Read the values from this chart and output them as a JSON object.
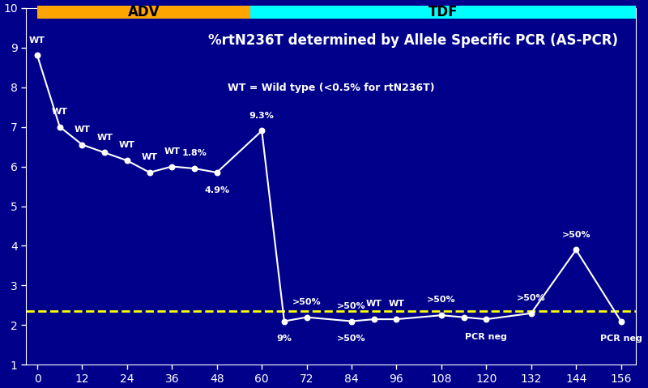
{
  "background_color": "#00008B",
  "plot_bg_color": "#00008B",
  "title": "%rtN236T determined by Allele Specific PCR (AS-PCR)",
  "subtitle": "WT = Wild type (<0.5% for rtN236T)",
  "title_color": "white",
  "subtitle_color": "white",
  "xlim": [
    -3,
    160
  ],
  "ylim": [
    1,
    10
  ],
  "xticks": [
    0,
    12,
    24,
    36,
    48,
    60,
    72,
    84,
    96,
    108,
    120,
    132,
    144,
    156
  ],
  "yticks": [
    1,
    2,
    3,
    4,
    5,
    6,
    7,
    8,
    9,
    10
  ],
  "tick_color": "white",
  "adv_color": "#FFA500",
  "tdf_color": "#00FFFF",
  "adv_label": "ADV",
  "tdf_label": "TDF",
  "adv_x_start": 0,
  "adv_x_end": 57,
  "tdf_x_start": 57,
  "tdf_x_end": 160,
  "line_color": "white",
  "marker_color": "white",
  "marker_face_color": "white",
  "dashed_line_y": 2.35,
  "dashed_line_color": "#FFFF00",
  "data_x": [
    0,
    6,
    12,
    18,
    24,
    30,
    36,
    42,
    48,
    60,
    66,
    72,
    84,
    90,
    96,
    108,
    114,
    120,
    132,
    144,
    156
  ],
  "data_y": [
    8.8,
    7.0,
    6.55,
    6.35,
    6.15,
    5.85,
    6.0,
    5.95,
    5.85,
    6.9,
    2.1,
    2.2,
    2.1,
    2.15,
    2.15,
    2.25,
    2.2,
    2.15,
    2.3,
    3.9,
    2.1
  ],
  "point_labels": [
    "WT",
    "WT",
    "WT",
    "WT",
    "WT",
    "WT",
    "WT",
    "1.8%",
    "4.9%",
    "9.3%",
    "9%",
    ">50%",
    ">50%",
    "WT",
    "WT",
    ">50%",
    null,
    "PCR neg",
    ">50%",
    ">50%",
    "PCR neg"
  ],
  "label_offsets": [
    10,
    10,
    10,
    10,
    10,
    10,
    10,
    10,
    -12,
    10,
    -12,
    10,
    10,
    10,
    10,
    10,
    0,
    -12,
    10,
    10,
    -12
  ],
  "second_labels": [
    null,
    null,
    null,
    null,
    null,
    null,
    null,
    null,
    null,
    null,
    null,
    null,
    ">50%",
    null,
    null,
    null,
    null,
    null,
    null,
    null,
    null
  ],
  "font_size_title": 12,
  "font_size_labels": 8,
  "font_size_ticks": 10,
  "font_size_subtitle": 9,
  "adv_tdf_font_size": 12,
  "bar_ymin": 9.72,
  "bar_ymax": 10.05,
  "figsize": [
    8.0,
    4.79
  ]
}
